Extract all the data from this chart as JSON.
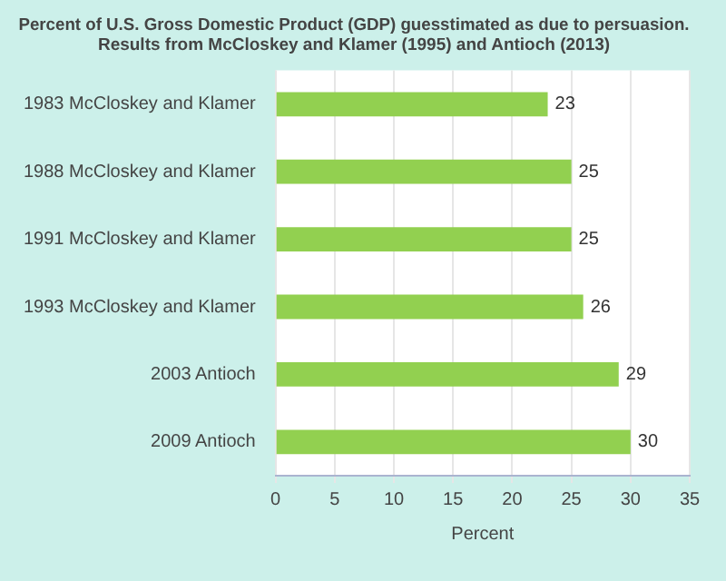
{
  "chart_data": {
    "type": "bar",
    "orientation": "horizontal",
    "title": "Percent of U.S. Gross Domestic Product (GDP) guesstimated as due to persuasion.\nResults from McCloskey and Klamer (1995) and Antioch (2013)",
    "xlabel": "Percent",
    "categories": [
      "1983 McCloskey and Klamer",
      "1988 McCloskey and Klamer",
      "1991 McCloskey and Klamer",
      "1993 McCloskey and Klamer",
      "2003 Antioch",
      "2009 Antioch"
    ],
    "values": [
      23,
      25,
      25,
      26,
      29,
      30
    ],
    "color": "#92d050",
    "xlim": [
      0,
      35
    ],
    "xticks": [
      0,
      5,
      10,
      15,
      20,
      25,
      30,
      35
    ],
    "grid": "x",
    "data_labels": true,
    "legend": false
  }
}
